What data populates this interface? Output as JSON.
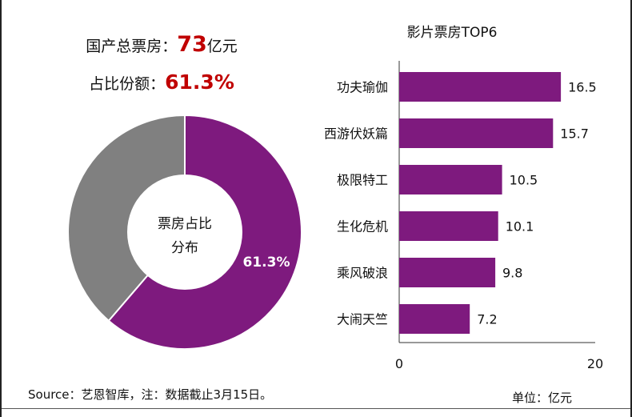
{
  "stats": {
    "total_label": "国产总票房：",
    "total_value": "73",
    "total_unit": "亿元",
    "share_label": "占比份额：",
    "share_value": "61.3%"
  },
  "source_text": "Source：艺恩智库，注：数据截止3月15日。",
  "unit_text": "单位：亿元",
  "colors": {
    "purple": "#7e1a7e",
    "gray": "#808080",
    "accent": "#c00000"
  },
  "chart_data": [
    {
      "type": "pie",
      "style": "donut",
      "center_label_line1": "票房占比",
      "center_label_line2": "分布",
      "slices": [
        {
          "value": 61.3,
          "label": "61.3%",
          "color": "#7e1a7e"
        },
        {
          "value": 38.7,
          "label": "",
          "color": "#808080"
        }
      ]
    },
    {
      "type": "bar",
      "orientation": "horizontal",
      "title": "影片票房TOP6",
      "categories": [
        "功夫瑜伽",
        "西游伏妖篇",
        "极限特工",
        "生化危机",
        "乘风破浪",
        "大闹天竺"
      ],
      "values": [
        16.5,
        15.7,
        10.5,
        10.1,
        9.8,
        7.2
      ],
      "value_labels": [
        "16.5",
        "15.7",
        "10.5",
        "10.1",
        "9.8",
        "7.2"
      ],
      "xlim": [
        0,
        20
      ],
      "x_ticks": [
        "0",
        "20"
      ],
      "bar_color": "#7e1a7e"
    }
  ]
}
